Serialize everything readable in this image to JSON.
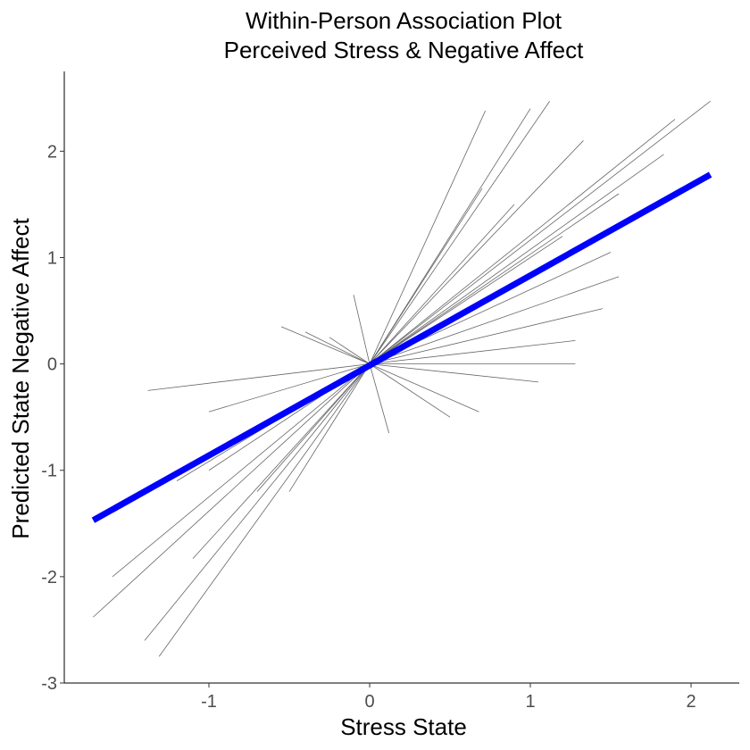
{
  "chart_data": {
    "type": "line",
    "title": [
      "Within-Person Association Plot",
      "Perceived Stress & Negative Affect"
    ],
    "xlabel": "Stress State",
    "ylabel": "Predicted State Negative Affect",
    "xlim": [
      -1.9,
      2.3
    ],
    "ylim": [
      -3,
      2.75
    ],
    "x_ticks": [
      -1,
      0,
      1,
      2
    ],
    "y_ticks": [
      -3,
      -2,
      -1,
      0,
      1,
      2
    ],
    "grid": false,
    "legend": "none",
    "colors": {
      "person": "#666666",
      "fixed": "#0000ff"
    },
    "fixed_effect": {
      "x": [
        -1.72,
        2.12
      ],
      "y": [
        -1.47,
        1.78
      ]
    },
    "series": [
      {
        "x": [
          -1.72,
          0.0
        ],
        "y": [
          -2.38,
          0.0
        ]
      },
      {
        "x": [
          -1.6,
          0.0
        ],
        "y": [
          -2.0,
          0.0
        ]
      },
      {
        "x": [
          -1.4,
          0.0
        ],
        "y": [
          -2.6,
          0.0
        ]
      },
      {
        "x": [
          -1.31,
          0.0
        ],
        "y": [
          -2.75,
          0.0
        ]
      },
      {
        "x": [
          -1.1,
          0.0
        ],
        "y": [
          -1.83,
          0.0
        ]
      },
      {
        "x": [
          -1.38,
          0.0
        ],
        "y": [
          -0.25,
          0.0
        ]
      },
      {
        "x": [
          -1.2,
          0.0
        ],
        "y": [
          -1.1,
          0.0
        ]
      },
      {
        "x": [
          -1.0,
          0.0
        ],
        "y": [
          -1.0,
          0.0
        ]
      },
      {
        "x": [
          -1.0,
          0.0
        ],
        "y": [
          -0.45,
          0.0
        ]
      },
      {
        "x": [
          -0.7,
          0.0
        ],
        "y": [
          -1.2,
          0.0
        ]
      },
      {
        "x": [
          -0.5,
          0.0
        ],
        "y": [
          -1.2,
          0.0
        ]
      },
      {
        "x": [
          -0.55,
          0.0
        ],
        "y": [
          0.35,
          0.0
        ]
      },
      {
        "x": [
          -0.4,
          0.0
        ],
        "y": [
          0.3,
          0.0
        ]
      },
      {
        "x": [
          -0.25,
          0.0
        ],
        "y": [
          0.25,
          0.0
        ]
      },
      {
        "x": [
          -0.1,
          0.0
        ],
        "y": [
          0.65,
          0.0
        ]
      },
      {
        "x": [
          0.0,
          0.12
        ],
        "y": [
          0.0,
          -0.65
        ]
      },
      {
        "x": [
          0.0,
          0.72
        ],
        "y": [
          0.0,
          2.38
        ]
      },
      {
        "x": [
          0.0,
          1.0
        ],
        "y": [
          0.0,
          2.4
        ]
      },
      {
        "x": [
          0.0,
          1.12
        ],
        "y": [
          0.0,
          2.47
        ]
      },
      {
        "x": [
          0.0,
          1.33
        ],
        "y": [
          0.0,
          2.1
        ]
      },
      {
        "x": [
          0.0,
          0.9
        ],
        "y": [
          0.0,
          1.5
        ]
      },
      {
        "x": [
          0.0,
          2.12
        ],
        "y": [
          0.0,
          2.47
        ]
      },
      {
        "x": [
          0.0,
          1.9
        ],
        "y": [
          0.0,
          2.3
        ]
      },
      {
        "x": [
          0.0,
          1.83
        ],
        "y": [
          0.0,
          1.97
        ]
      },
      {
        "x": [
          0.0,
          1.55
        ],
        "y": [
          0.0,
          1.6
        ]
      },
      {
        "x": [
          0.0,
          1.5
        ],
        "y": [
          0.0,
          1.05
        ]
      },
      {
        "x": [
          0.0,
          1.55
        ],
        "y": [
          0.0,
          0.82
        ]
      },
      {
        "x": [
          0.0,
          1.45
        ],
        "y": [
          0.0,
          0.52
        ]
      },
      {
        "x": [
          0.0,
          1.28
        ],
        "y": [
          0.0,
          0.22
        ]
      },
      {
        "x": [
          0.0,
          1.28
        ],
        "y": [
          0.0,
          0.0
        ]
      },
      {
        "x": [
          0.0,
          1.05
        ],
        "y": [
          0.0,
          -0.17
        ]
      },
      {
        "x": [
          0.0,
          0.5
        ],
        "y": [
          0.0,
          -0.5
        ]
      },
      {
        "x": [
          0.0,
          0.68
        ],
        "y": [
          0.0,
          -0.45
        ]
      },
      {
        "x": [
          0.0,
          1.2
        ],
        "y": [
          0.0,
          1.2
        ]
      },
      {
        "x": [
          0.0,
          0.7
        ],
        "y": [
          0.0,
          1.65
        ]
      }
    ]
  }
}
